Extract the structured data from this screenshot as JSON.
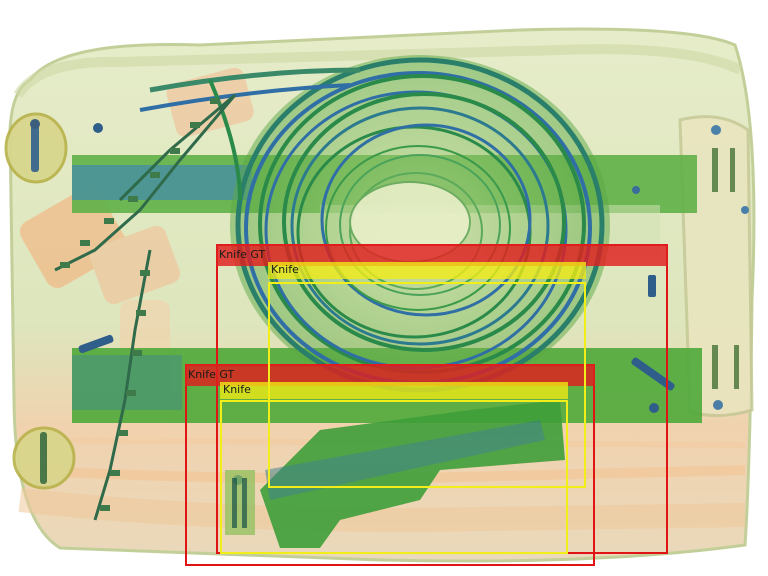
{
  "image": {
    "subject": "x-ray scan of a suitcase",
    "colors": {
      "background": "#ffffff",
      "case_body": "#dfe7c2",
      "case_edge": "#b9c98c",
      "organic_orange": "#f2b07a",
      "metal_green": "#3f9f2f",
      "dense_blue": "#2f6fa5",
      "rail_green": "#4fb03a"
    }
  },
  "annotations": {
    "colors": {
      "ground_truth": "#e01414",
      "prediction": "#f2ee1a"
    },
    "ground_truth": [
      {
        "label": "Knife GT"
      },
      {
        "label": "Knife GT"
      }
    ],
    "predictions": [
      {
        "label": "Knife"
      },
      {
        "label": "Knife"
      }
    ]
  }
}
